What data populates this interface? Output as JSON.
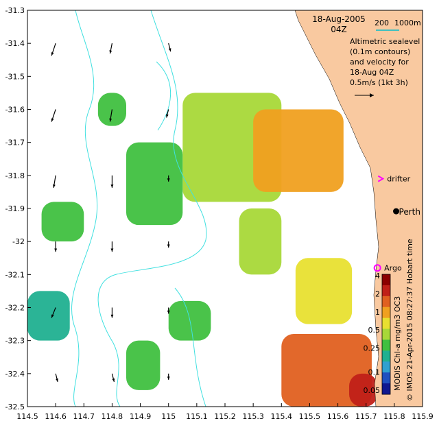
{
  "title": {
    "date": "18-Aug-2005",
    "time": "04Z"
  },
  "scale_bar": {
    "label_a": "200",
    "label_b": "1000m",
    "color": "#40c0c0"
  },
  "legend_text": [
    "Altimetric sealevel",
    "(0.1m contours)",
    "and velocity for",
    "18-Aug 04Z",
    "0.5m/s (1kt 3h)"
  ],
  "places": {
    "perth": "Perth",
    "argo": "Argo",
    "drifter": "drifter"
  },
  "credits": {
    "product": "MODIS Chl-a mg/m3 OC3",
    "stamp": "© IMOS 21-Apr-2015 08:27:37 Hobart time"
  },
  "colorbar": {
    "labels": [
      "4",
      "2",
      "1",
      "0.5",
      "0.25",
      "0.1",
      "0.05"
    ],
    "values": [
      4,
      2,
      1,
      0.5,
      0.25,
      0.1,
      0.05
    ],
    "colors": [
      "#8b0000",
      "#c02018",
      "#e06020",
      "#f0a020",
      "#e8e030",
      "#a8d838",
      "#40c040",
      "#20b090",
      "#30a0d0",
      "#2050c0",
      "#101890"
    ]
  },
  "colors": {
    "land": "#f9c9a0",
    "contour": "#40e0e0",
    "arrow": "#000000",
    "drifter_marker": "#ff00ff",
    "argo_marker": "#ff00ff"
  },
  "chart_data": {
    "type": "heatmap",
    "xlim": [
      114.5,
      115.9
    ],
    "ylim": [
      -32.5,
      -31.3
    ],
    "x_ticks": [
      114.5,
      114.6,
      114.7,
      114.8,
      114.9,
      115,
      115.1,
      115.2,
      115.3,
      115.4,
      115.5,
      115.6,
      115.7,
      115.8,
      115.9
    ],
    "x_tick_labels": [
      "114.5",
      "114.6",
      "114.7",
      "114.8",
      "114.9",
      "115",
      "115.1",
      "115.2",
      "115.3",
      "115.4",
      "115.5",
      "115.6",
      "115.7",
      "115.8",
      "115.9"
    ],
    "y_ticks": [
      -31.3,
      -31.4,
      -31.5,
      -31.6,
      -31.7,
      -31.8,
      -31.9,
      -32,
      -32.1,
      -32.2,
      -32.3,
      -32.4,
      -32.5
    ],
    "y_tick_labels": [
      "-31.3",
      "-31.4",
      "-31.5",
      "-31.6",
      "-31.7",
      "-31.8",
      "-31.9",
      "-32",
      "-32.1",
      "-32.2",
      "-32.3",
      "-32.4",
      "-32.5"
    ],
    "patches": [
      {
        "lon": [
          115.05,
          115.4
        ],
        "lat": [
          -31.88,
          -31.55
        ],
        "value": 0.4
      },
      {
        "lon": [
          115.3,
          115.62
        ],
        "lat": [
          -31.85,
          -31.6
        ],
        "value": 0.9
      },
      {
        "lon": [
          115.25,
          115.4
        ],
        "lat": [
          -32.1,
          -31.9
        ],
        "value": 0.4
      },
      {
        "lon": [
          115.45,
          115.65
        ],
        "lat": [
          -32.25,
          -32.05
        ],
        "value": 0.8
      },
      {
        "lon": [
          115.4,
          115.72
        ],
        "lat": [
          -32.5,
          -32.28
        ],
        "value": 1.5
      },
      {
        "lon": [
          115.64,
          115.74
        ],
        "lat": [
          -32.5,
          -32.4
        ],
        "value": 3
      },
      {
        "lon": [
          114.85,
          115.05
        ],
        "lat": [
          -31.95,
          -31.7
        ],
        "value": 0.25
      },
      {
        "lon": [
          114.5,
          114.65
        ],
        "lat": [
          -32.3,
          -32.15
        ],
        "value": 0.15
      },
      {
        "lon": [
          114.55,
          114.7
        ],
        "lat": [
          -32.0,
          -31.88
        ],
        "value": 0.3
      },
      {
        "lon": [
          114.75,
          114.85
        ],
        "lat": [
          -31.65,
          -31.55
        ],
        "value": 0.3
      },
      {
        "lon": [
          115.0,
          115.15
        ],
        "lat": [
          -32.3,
          -32.18
        ],
        "value": 0.3
      },
      {
        "lon": [
          114.85,
          114.97
        ],
        "lat": [
          -32.45,
          -32.3
        ],
        "value": 0.3
      }
    ],
    "velocity": [
      {
        "lon": 114.6,
        "lat": -31.4,
        "u": -0.2,
        "v": -0.6
      },
      {
        "lon": 114.8,
        "lat": -31.4,
        "u": -0.1,
        "v": -0.5
      },
      {
        "lon": 115.0,
        "lat": -31.4,
        "u": 0.1,
        "v": -0.4
      },
      {
        "lon": 114.6,
        "lat": -31.6,
        "u": -0.2,
        "v": -0.6
      },
      {
        "lon": 114.8,
        "lat": -31.6,
        "u": -0.1,
        "v": -0.6
      },
      {
        "lon": 115.0,
        "lat": -31.6,
        "u": -0.1,
        "v": -0.4
      },
      {
        "lon": 114.6,
        "lat": -31.8,
        "u": -0.1,
        "v": -0.6
      },
      {
        "lon": 114.8,
        "lat": -31.8,
        "u": 0.0,
        "v": -0.6
      },
      {
        "lon": 115.0,
        "lat": -31.8,
        "u": 0.0,
        "v": -0.3
      },
      {
        "lon": 114.6,
        "lat": -32.0,
        "u": 0.0,
        "v": -0.5
      },
      {
        "lon": 114.8,
        "lat": -32.0,
        "u": 0.0,
        "v": -0.5
      },
      {
        "lon": 115.0,
        "lat": -32.0,
        "u": 0.0,
        "v": -0.3
      },
      {
        "lon": 114.6,
        "lat": -32.2,
        "u": -0.2,
        "v": -0.5
      },
      {
        "lon": 114.8,
        "lat": -32.2,
        "u": 0.0,
        "v": -0.5
      },
      {
        "lon": 115.0,
        "lat": -32.2,
        "u": 0.0,
        "v": -0.3
      },
      {
        "lon": 114.6,
        "lat": -32.4,
        "u": 0.1,
        "v": -0.4
      },
      {
        "lon": 114.8,
        "lat": -32.4,
        "u": 0.1,
        "v": -0.4
      },
      {
        "lon": 115.0,
        "lat": -32.4,
        "u": 0.0,
        "v": -0.3
      }
    ],
    "drifter": {
      "lon": 115.75,
      "lat": -31.81
    },
    "argo": {
      "lon": 115.74,
      "lat": -32.08
    },
    "perth": {
      "lon": 115.86,
      "lat": -31.95
    }
  }
}
